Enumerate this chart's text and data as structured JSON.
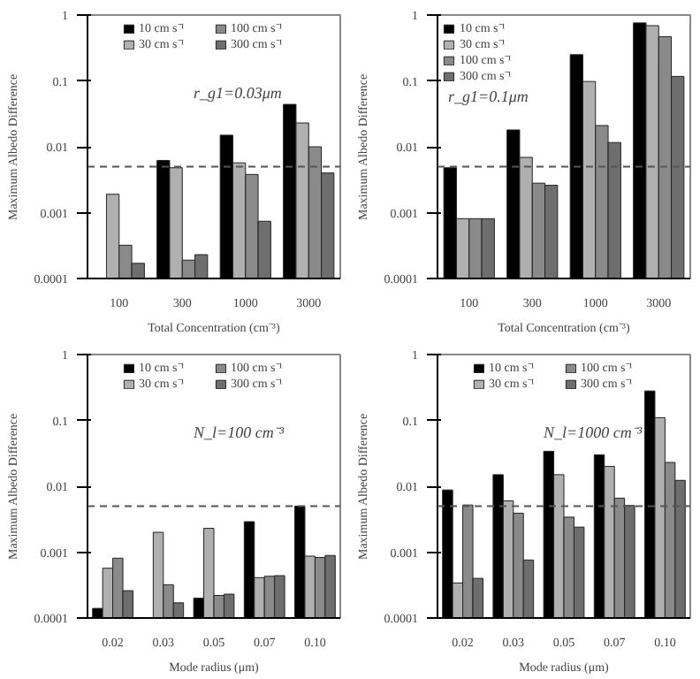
{
  "chart_data": [
    {
      "type": "bar",
      "xlabel": "Total Concentration (cm⁻³)",
      "ylabel": "Maximum Albedo Difference",
      "categories": [
        "100",
        "300",
        "1000",
        "3000"
      ],
      "log": true,
      "ylim": [
        0.0001,
        1
      ],
      "yticks": [
        0.0001,
        0.001,
        0.01,
        0.1,
        1
      ],
      "grid": false,
      "legend": "top",
      "annotations": [
        "r_g1=0.03μm"
      ],
      "ref_lines": [
        {
          "axis": "y",
          "value": 0.005,
          "line_style": "dashed",
          "color": "#555555"
        }
      ],
      "series": [
        {
          "name": "10 cm s⁻¹",
          "color": "#000000",
          "values": [
            null,
            0.0062,
            0.015,
            0.044
          ]
        },
        {
          "name": "30 cm s⁻¹",
          "color": "#b0b0b0",
          "values": [
            0.0019,
            0.0048,
            0.0057,
            0.023
          ]
        },
        {
          "name": "100 cm s⁻¹",
          "color": "#8a8a8a",
          "values": [
            0.00032,
            0.00019,
            0.0038,
            0.01
          ]
        },
        {
          "name": "300 cm s⁻¹",
          "color": "#6e6e6e",
          "values": [
            0.00017,
            0.00023,
            0.00074,
            0.004
          ]
        }
      ]
    },
    {
      "type": "bar",
      "xlabel": "Total Concentration (cm⁻³)",
      "ylabel": "Maximum Albedo Difference",
      "categories": [
        "100",
        "300",
        "1000",
        "3000"
      ],
      "log": true,
      "ylim": [
        0.0001,
        1
      ],
      "yticks": [
        0.0001,
        0.001,
        0.01,
        0.1,
        1
      ],
      "grid": false,
      "legend": "top left",
      "annotations": [
        "r_g1=0.1μm"
      ],
      "ref_lines": [
        {
          "axis": "y",
          "value": 0.005,
          "line_style": "dashed",
          "color": "#555555"
        }
      ],
      "series": [
        {
          "name": "10 cm s⁻¹",
          "color": "#000000",
          "values": [
            0.0048,
            0.018,
            0.25,
            0.76
          ]
        },
        {
          "name": "30 cm s⁻¹",
          "color": "#b0b0b0",
          "values": [
            0.00081,
            0.0069,
            0.098,
            0.69
          ]
        },
        {
          "name": "100 cm s⁻¹",
          "color": "#8a8a8a",
          "values": [
            0.00081,
            0.0028,
            0.021,
            0.47
          ]
        },
        {
          "name": "300 cm s⁻¹",
          "color": "#6e6e6e",
          "values": [
            0.00081,
            0.0026,
            0.0116,
            0.117
          ]
        }
      ]
    },
    {
      "type": "bar",
      "xlabel": "Mode radius (μm)",
      "ylabel": "Maximum Albedo Difference",
      "categories": [
        "0.02",
        "0.03",
        "0.05",
        "0.07",
        "0.10"
      ],
      "log": true,
      "ylim": [
        0.0001,
        1
      ],
      "yticks": [
        0.0001,
        0.001,
        0.01,
        0.1,
        1
      ],
      "grid": false,
      "legend": "top",
      "annotations": [
        "N_l=100 cm⁻³"
      ],
      "ref_lines": [
        {
          "axis": "y",
          "value": 0.005,
          "line_style": "dashed",
          "color": "#555555"
        }
      ],
      "series": [
        {
          "name": "10 cm s⁻¹",
          "color": "#000000",
          "values": [
            0.00014,
            null,
            0.0002,
            0.0029,
            0.005
          ]
        },
        {
          "name": "30 cm s⁻¹",
          "color": "#b0b0b0",
          "values": [
            0.00057,
            0.002,
            0.0023,
            0.00041,
            0.00087
          ]
        },
        {
          "name": "100 cm s⁻¹",
          "color": "#8a8a8a",
          "values": [
            0.00081,
            0.00032,
            0.00022,
            0.00043,
            0.00083
          ]
        },
        {
          "name": "300 cm s⁻¹",
          "color": "#6e6e6e",
          "values": [
            0.00026,
            0.00017,
            0.00023,
            0.00044,
            0.00089
          ]
        }
      ]
    },
    {
      "type": "bar",
      "xlabel": "Mode radius (μm)",
      "ylabel": "Maximum Albedo Difference",
      "categories": [
        "0.02",
        "0.03",
        "0.05",
        "0.07",
        "0.10"
      ],
      "log": true,
      "ylim": [
        0.0001,
        1
      ],
      "yticks": [
        0.0001,
        0.001,
        0.01,
        0.1,
        1
      ],
      "grid": false,
      "legend": "top",
      "annotations": [
        "N_l=1000 cm⁻³"
      ],
      "ref_lines": [
        {
          "axis": "y",
          "value": 0.005,
          "line_style": "dashed",
          "color": "#555555"
        }
      ],
      "series": [
        {
          "name": "10 cm s⁻¹",
          "color": "#000000",
          "values": [
            0.0088,
            0.015,
            0.034,
            0.03,
            0.28
          ]
        },
        {
          "name": "30 cm s⁻¹",
          "color": "#b0b0b0",
          "values": [
            0.00034,
            0.006,
            0.015,
            0.02,
            0.11
          ]
        },
        {
          "name": "100 cm s⁻¹",
          "color": "#8a8a8a",
          "values": [
            0.0052,
            0.0039,
            0.0034,
            0.0066,
            0.023
          ]
        },
        {
          "name": "300 cm s⁻¹",
          "color": "#6e6e6e",
          "values": [
            0.0004,
            0.00076,
            0.0024,
            0.0051,
            0.0123
          ]
        }
      ]
    }
  ]
}
